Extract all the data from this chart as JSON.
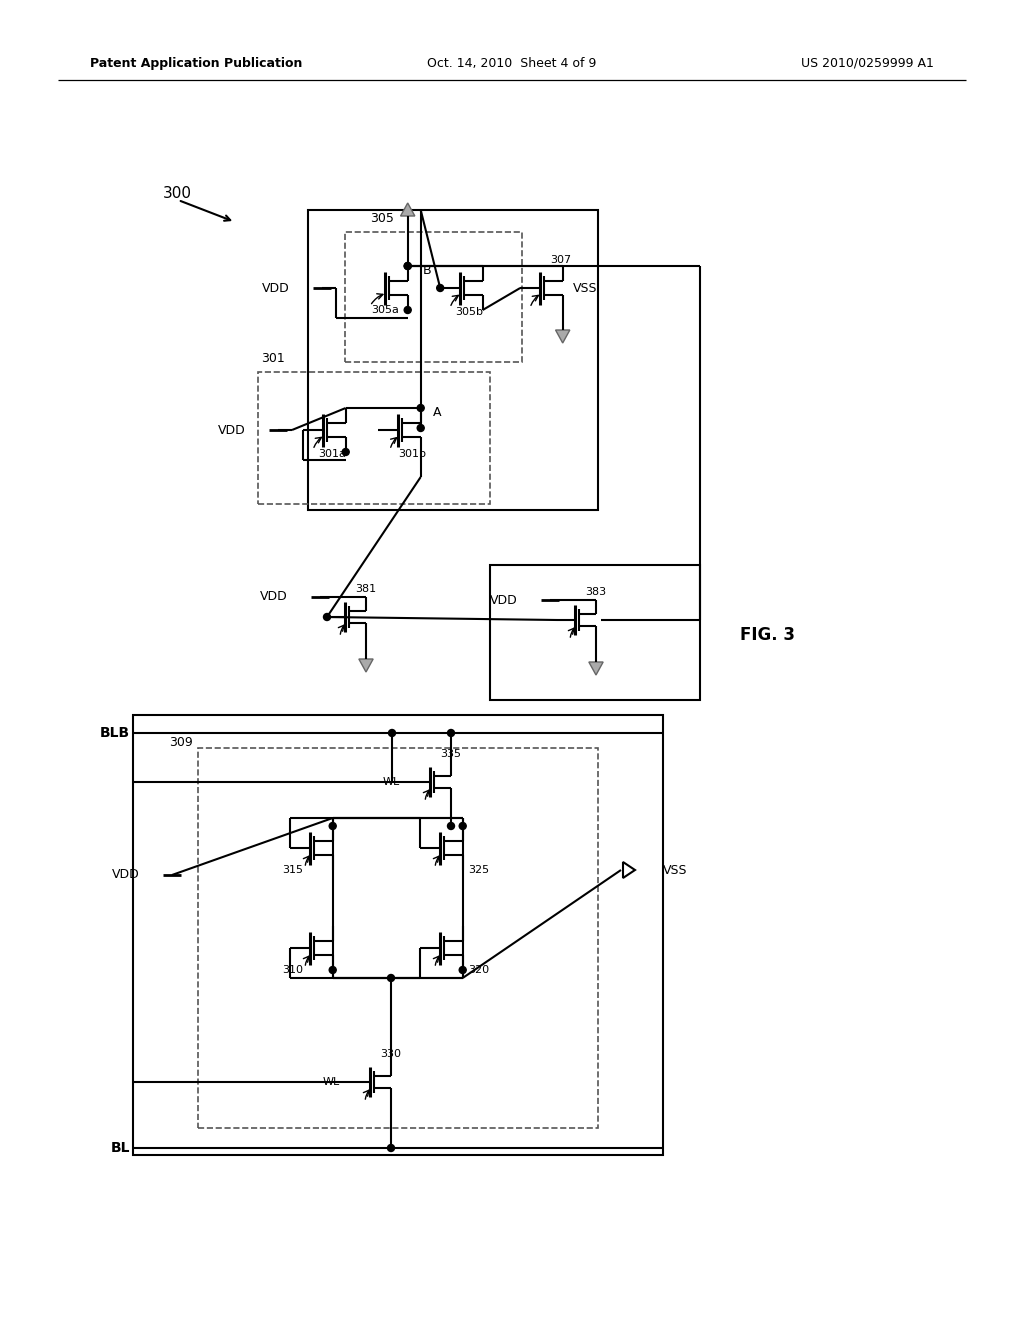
{
  "title_left": "Patent Application Publication",
  "title_mid": "Oct. 14, 2010  Sheet 4 of 9",
  "title_right": "US 2010/0259999 A1",
  "fig_label": "FIG. 3",
  "bg_color": "#ffffff",
  "line_color": "#000000"
}
